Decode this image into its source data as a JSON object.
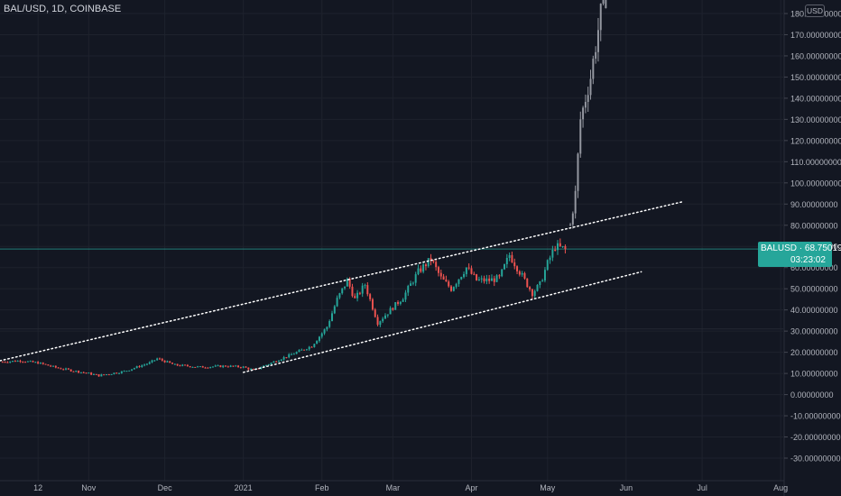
{
  "header": {
    "symbol_label": "BAL/USD, 1D, COINBASE"
  },
  "currency_badge": "USD",
  "last_price": {
    "symbol": "BALUSD",
    "value": "68.75019000",
    "countdown": "03:23:02"
  },
  "colors": {
    "background": "#131722",
    "grid": "#1e222d",
    "up": "#26a69a",
    "down": "#ef5350",
    "projection": "#9598a1",
    "trendline": "#ffffff",
    "axis_text": "#b2b5be"
  },
  "chart_data": {
    "type": "candlestick",
    "y_axis": {
      "ticks": [
        180,
        170,
        160,
        150,
        140,
        130,
        120,
        110,
        100,
        90,
        80,
        70,
        60,
        50,
        40,
        30,
        20,
        10,
        0,
        -10,
        -20,
        -30
      ],
      "tick_labels": [
        "180.00000000",
        "170.00000000",
        "160.00000000",
        "150.00000000",
        "140.00000000",
        "130.00000000",
        "120.00000000",
        "110.00000000",
        "100.00000000",
        "90.00000000",
        "80.00000000",
        "70.00000000",
        "60.00000000",
        "50.00000000",
        "40.00000000",
        "30.00000000",
        "20.00000000",
        "10.00000000",
        "0.00000000",
        "-10.00000000",
        "-20.00000000",
        "-30.00000000"
      ],
      "range": [
        -34,
        185
      ]
    },
    "x_axis": {
      "range": [
        "2020-09-27",
        "2021-08-02"
      ],
      "ticks": [
        {
          "date": "2020-10-12",
          "label": "12"
        },
        {
          "date": "2020-11-01",
          "label": "Nov"
        },
        {
          "date": "2020-12-01",
          "label": "Dec"
        },
        {
          "date": "2021-01-01",
          "label": "2021"
        },
        {
          "date": "2021-02-01",
          "label": "Feb"
        },
        {
          "date": "2021-03-01",
          "label": "Mar"
        },
        {
          "date": "2021-04-01",
          "label": "Apr"
        },
        {
          "date": "2021-05-01",
          "label": "May"
        },
        {
          "date": "2021-06-01",
          "label": "Jun"
        },
        {
          "date": "2021-07-01",
          "label": "Jul"
        },
        {
          "date": "2021-08-01",
          "label": "Aug"
        }
      ]
    },
    "anchor_closes": [
      [
        "2020-09-28",
        15.5
      ],
      [
        "2020-10-05",
        16
      ],
      [
        "2020-10-12",
        15
      ],
      [
        "2020-10-20",
        12.5
      ],
      [
        "2020-11-01",
        10
      ],
      [
        "2020-11-05",
        9
      ],
      [
        "2020-11-15",
        11
      ],
      [
        "2020-11-25",
        15
      ],
      [
        "2020-11-28",
        17
      ],
      [
        "2020-12-05",
        14
      ],
      [
        "2020-12-15",
        13
      ],
      [
        "2020-12-25",
        13.5
      ],
      [
        "2021-01-01",
        13
      ],
      [
        "2021-01-05",
        11.5
      ],
      [
        "2021-01-10",
        14
      ],
      [
        "2021-01-20",
        19
      ],
      [
        "2021-01-28",
        23
      ],
      [
        "2021-02-03",
        32
      ],
      [
        "2021-02-07",
        45
      ],
      [
        "2021-02-11",
        54
      ],
      [
        "2021-02-14",
        45
      ],
      [
        "2021-02-18",
        52
      ],
      [
        "2021-02-23",
        34
      ],
      [
        "2021-02-28",
        40
      ],
      [
        "2021-03-05",
        46
      ],
      [
        "2021-03-11",
        58
      ],
      [
        "2021-03-16",
        64
      ],
      [
        "2021-03-20",
        55
      ],
      [
        "2021-03-24",
        50
      ],
      [
        "2021-03-30",
        60
      ],
      [
        "2021-04-03",
        54
      ],
      [
        "2021-04-08",
        54
      ],
      [
        "2021-04-12",
        55
      ],
      [
        "2021-04-16",
        66
      ],
      [
        "2021-04-20",
        58
      ],
      [
        "2021-04-25",
        48
      ],
      [
        "2021-04-28",
        52
      ],
      [
        "2021-05-01",
        62
      ],
      [
        "2021-05-04",
        70
      ],
      [
        "2021-05-08",
        68.75
      ]
    ],
    "projection_closes": [
      [
        "2021-05-10",
        80
      ],
      [
        "2021-05-12",
        95
      ],
      [
        "2021-05-14",
        130
      ],
      [
        "2021-05-16",
        140
      ],
      [
        "2021-05-18",
        150
      ],
      [
        "2021-05-20",
        165
      ],
      [
        "2021-05-22",
        180
      ],
      [
        "2021-05-24",
        188
      ]
    ],
    "trendlines": [
      {
        "name": "upper-channel",
        "start": [
          "2020-09-27",
          16
        ],
        "end": [
          "2021-06-23",
          91
        ]
      },
      {
        "name": "lower-channel",
        "start": [
          "2021-01-01",
          10.5
        ],
        "end": [
          "2021-06-07",
          58
        ]
      }
    ],
    "horizontal_lines": [
      {
        "value": 68.75019,
        "color": "#26a69a"
      },
      {
        "value": 31,
        "color": "#2a2e39"
      }
    ]
  }
}
